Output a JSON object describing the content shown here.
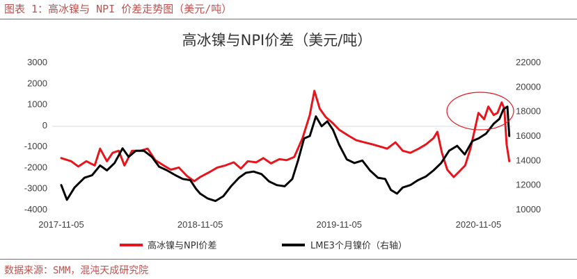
{
  "caption": "图表 1：高冰镍与 NPI 价差走势图（美元/吨）",
  "source": "数据来源：SMM，混沌天成研究院",
  "chart_data": {
    "type": "line",
    "title": "高冰镍与NPI价差（美元/吨）",
    "x_tick_labels": [
      "2017-11-05",
      "2018-11-05",
      "2019-11-05",
      "2020-11-05"
    ],
    "y_left": {
      "ticks": [
        3000,
        2000,
        1000,
        0,
        -1000,
        -2000,
        -3000,
        -4000
      ],
      "range": [
        -4000,
        3000
      ]
    },
    "y_right": {
      "ticks": [
        22000,
        20000,
        18000,
        16000,
        14000,
        12000,
        10000
      ],
      "range": [
        10000,
        22000
      ]
    },
    "series": [
      {
        "name": "高冰镍与NPI价差",
        "axis": "left",
        "color": "#e8141c",
        "points": [
          [
            "2017-11-05",
            -1550
          ],
          [
            "2017-12-01",
            -1700
          ],
          [
            "2017-12-20",
            -1950
          ],
          [
            "2018-01-10",
            -1700
          ],
          [
            "2018-02-01",
            -1900
          ],
          [
            "2018-02-15",
            -1100
          ],
          [
            "2018-03-05",
            -1700
          ],
          [
            "2018-03-20",
            -1300
          ],
          [
            "2018-04-05",
            -1200
          ],
          [
            "2018-04-20",
            -1900
          ],
          [
            "2018-05-10",
            -1200
          ],
          [
            "2018-06-01",
            -1200
          ],
          [
            "2018-06-20",
            -1100
          ],
          [
            "2018-07-10",
            -1650
          ],
          [
            "2018-08-01",
            -1900
          ],
          [
            "2018-08-20",
            -2100
          ],
          [
            "2018-09-10",
            -2000
          ],
          [
            "2018-10-01",
            -2400
          ],
          [
            "2018-10-20",
            -2650
          ],
          [
            "2018-11-05",
            -2450
          ],
          [
            "2018-12-01",
            -2200
          ],
          [
            "2018-12-20",
            -2000
          ],
          [
            "2019-01-10",
            -1900
          ],
          [
            "2019-02-01",
            -1750
          ],
          [
            "2019-02-20",
            -2050
          ],
          [
            "2019-03-10",
            -1700
          ],
          [
            "2019-04-01",
            -1750
          ],
          [
            "2019-04-20",
            -1550
          ],
          [
            "2019-05-10",
            -1800
          ],
          [
            "2019-06-01",
            -1600
          ],
          [
            "2019-06-20",
            -1650
          ],
          [
            "2019-07-10",
            -1500
          ],
          [
            "2019-08-01",
            -600
          ],
          [
            "2019-08-20",
            500
          ],
          [
            "2019-09-01",
            1650
          ],
          [
            "2019-09-15",
            800
          ],
          [
            "2019-10-01",
            400
          ],
          [
            "2019-10-20",
            100
          ],
          [
            "2019-11-05",
            -200
          ],
          [
            "2019-12-01",
            -500
          ],
          [
            "2019-12-20",
            -700
          ],
          [
            "2020-01-10",
            -800
          ],
          [
            "2020-02-01",
            -900
          ],
          [
            "2020-02-20",
            -1000
          ],
          [
            "2020-03-10",
            -1100
          ],
          [
            "2020-04-01",
            -800
          ],
          [
            "2020-04-20",
            -1200
          ],
          [
            "2020-05-10",
            -1300
          ],
          [
            "2020-06-01",
            -1100
          ],
          [
            "2020-06-20",
            -900
          ],
          [
            "2020-07-10",
            -600
          ],
          [
            "2020-07-20",
            -300
          ],
          [
            "2020-08-01",
            -1300
          ],
          [
            "2020-08-15",
            -2100
          ],
          [
            "2020-09-01",
            -2450
          ],
          [
            "2020-09-15",
            -2200
          ],
          [
            "2020-10-01",
            -1900
          ],
          [
            "2020-10-15",
            -1100
          ],
          [
            "2020-10-25",
            -300
          ],
          [
            "2020-11-05",
            600
          ],
          [
            "2020-11-20",
            300
          ],
          [
            "2020-12-01",
            900
          ],
          [
            "2020-12-15",
            500
          ],
          [
            "2020-12-25",
            600
          ],
          [
            "2021-01-05",
            1100
          ],
          [
            "2021-01-12",
            800
          ],
          [
            "2021-01-18",
            -900
          ],
          [
            "2021-01-25",
            -1700
          ]
        ]
      },
      {
        "name": "LME3个月镍价（右轴）",
        "axis": "right",
        "color": "#000000",
        "points": [
          [
            "2017-11-05",
            12000
          ],
          [
            "2017-11-20",
            10800
          ],
          [
            "2017-12-10",
            11800
          ],
          [
            "2018-01-05",
            12600
          ],
          [
            "2018-01-25",
            12800
          ],
          [
            "2018-02-15",
            13600
          ],
          [
            "2018-03-05",
            13200
          ],
          [
            "2018-03-25",
            13800
          ],
          [
            "2018-04-15",
            15000
          ],
          [
            "2018-05-01",
            14300
          ],
          [
            "2018-05-20",
            14800
          ],
          [
            "2018-06-10",
            14800
          ],
          [
            "2018-07-01",
            14300
          ],
          [
            "2018-07-20",
            13500
          ],
          [
            "2018-08-10",
            13200
          ],
          [
            "2018-09-01",
            12800
          ],
          [
            "2018-09-20",
            12500
          ],
          [
            "2018-10-10",
            12400
          ],
          [
            "2018-10-25",
            11700
          ],
          [
            "2018-11-05",
            11300
          ],
          [
            "2018-11-25",
            10900
          ],
          [
            "2018-12-15",
            10700
          ],
          [
            "2019-01-05",
            11100
          ],
          [
            "2019-01-25",
            11900
          ],
          [
            "2019-02-15",
            12600
          ],
          [
            "2019-03-05",
            13000
          ],
          [
            "2019-03-25",
            13100
          ],
          [
            "2019-04-15",
            12900
          ],
          [
            "2019-05-05",
            12300
          ],
          [
            "2019-05-25",
            12000
          ],
          [
            "2019-06-15",
            11900
          ],
          [
            "2019-07-05",
            12500
          ],
          [
            "2019-07-20",
            14000
          ],
          [
            "2019-08-05",
            15800
          ],
          [
            "2019-08-20",
            16000
          ],
          [
            "2019-09-05",
            17600
          ],
          [
            "2019-09-20",
            16800
          ],
          [
            "2019-10-05",
            17200
          ],
          [
            "2019-10-20",
            16500
          ],
          [
            "2019-11-05",
            15300
          ],
          [
            "2019-11-25",
            14100
          ],
          [
            "2019-12-15",
            13800
          ],
          [
            "2020-01-05",
            14000
          ],
          [
            "2020-01-25",
            13200
          ],
          [
            "2020-02-15",
            12600
          ],
          [
            "2020-03-05",
            12500
          ],
          [
            "2020-03-20",
            11600
          ],
          [
            "2020-04-05",
            11300
          ],
          [
            "2020-04-20",
            11800
          ],
          [
            "2020-05-10",
            12000
          ],
          [
            "2020-05-30",
            12400
          ],
          [
            "2020-06-20",
            12700
          ],
          [
            "2020-07-10",
            13200
          ],
          [
            "2020-07-30",
            13800
          ],
          [
            "2020-08-20",
            14800
          ],
          [
            "2020-09-10",
            15200
          ],
          [
            "2020-09-30",
            14500
          ],
          [
            "2020-10-20",
            15600
          ],
          [
            "2020-11-05",
            15800
          ],
          [
            "2020-11-25",
            16200
          ],
          [
            "2020-12-15",
            17000
          ],
          [
            "2020-12-30",
            17400
          ],
          [
            "2021-01-10",
            18200
          ],
          [
            "2021-01-20",
            18400
          ],
          [
            "2021-01-25",
            16000
          ]
        ]
      }
    ],
    "grid": false,
    "legend_position": "bottom"
  }
}
